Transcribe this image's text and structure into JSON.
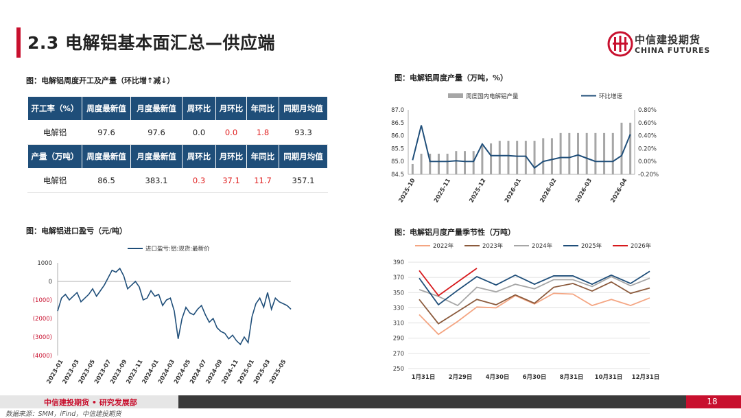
{
  "page": {
    "title": "2.3 电解铝基本面汇总—供应端",
    "logo_cn": "中信建投期货",
    "logo_en": "CHINA FUTURES",
    "footer_org": "中信建投期货 • 研究发展部",
    "page_number": "18",
    "source": "数据来源：SMM，iFind，中信建投期货",
    "accent_color": "#c8102e",
    "header_color": "#1f4e79"
  },
  "table_section": {
    "caption": "图：电解铝周度开工及产量（环比增↑减↓）",
    "rows": [
      {
        "type": "header",
        "cells": [
          "开工率（%）",
          "周度最新值",
          "月度最新值",
          "周环比",
          "月环比",
          "年同比",
          "同期月均值"
        ]
      },
      {
        "type": "data",
        "cells": [
          "电解铝",
          "97.6",
          "97.6",
          "0.0",
          "0.0",
          "1.8",
          "93.3"
        ],
        "red": [
          4,
          5
        ]
      },
      {
        "type": "header",
        "cells": [
          "产量（万吨）",
          "周度最新值",
          "月度最新值",
          "周环比",
          "月环比",
          "年同比",
          "同期月均值"
        ]
      },
      {
        "type": "data",
        "cells": [
          "电解铝",
          "86.5",
          "383.1",
          "0.3",
          "37.1",
          "11.7",
          "357.1"
        ],
        "red": [
          3,
          4,
          5
        ]
      }
    ]
  },
  "chart_data": [
    {
      "id": "weekly",
      "type": "bar+line",
      "caption": "图：电解铝周度产量（万吨，%）",
      "legend": [
        "周度国内电解铝产量",
        "环比增速"
      ],
      "x_tick_labels": [
        "2025-10",
        "2025-11",
        "2025-12",
        "2026-01",
        "2026-02",
        "2026-03",
        "2026-04"
      ],
      "y_left": {
        "min": 84.5,
        "max": 87.0,
        "ticks": [
          "84.5",
          "85.0",
          "85.5",
          "86.0",
          "86.5",
          "87.0"
        ]
      },
      "y_right": {
        "min": -0.2,
        "max": 0.8,
        "ticks": [
          "-0.20%",
          "0.00%",
          "0.20%",
          "0.40%",
          "0.60%",
          "0.80%"
        ]
      },
      "series": [
        {
          "name": "周度国内电解铝产量",
          "type": "bar",
          "color": "#a6a6a6",
          "values": [
            84.9,
            85.3,
            85.3,
            85.3,
            85.3,
            85.4,
            85.4,
            85.4,
            85.6,
            85.7,
            85.8,
            85.8,
            85.8,
            85.8,
            85.8,
            85.9,
            85.9,
            86.1,
            86.1,
            86.1,
            86.1,
            86.1,
            86.1,
            86.1,
            86.5,
            86.5
          ]
        },
        {
          "name": "环比增速",
          "type": "line",
          "color": "#1f4e79",
          "values": [
            0.02,
            0.56,
            0.0,
            0.0,
            0.0,
            0.01,
            0.0,
            0.0,
            0.27,
            0.09,
            0.09,
            0.09,
            0.08,
            0.08,
            -0.1,
            0.0,
            0.03,
            0.06,
            0.06,
            0.1,
            0.05,
            0.0,
            0.0,
            0.0,
            0.09,
            0.42
          ]
        }
      ]
    },
    {
      "id": "import",
      "type": "line",
      "caption": "图：电解铝进口盈亏（元/吨）",
      "legend": [
        "进口盈亏:铝:现货:最新价"
      ],
      "x_tick_labels": [
        "2023-01",
        "2023-03",
        "2023-05",
        "2023-07",
        "2023-09",
        "2023-11",
        "2024-01",
        "2024-03",
        "2024-05",
        "2024-07",
        "2024-09",
        "2024-11",
        "2025-01",
        "2025-03",
        "2025-05"
      ],
      "y": {
        "min": -4000,
        "max": 1000,
        "ticks": [
          "1000",
          "0",
          "(1000)",
          "(2000)",
          "(3000)",
          "(4000)"
        ]
      },
      "series": [
        {
          "name": "进口盈亏:铝:现货:最新价",
          "color": "#1f4e79",
          "values": [
            -1600,
            -900,
            -700,
            -1000,
            -800,
            -600,
            -1100,
            -900,
            -700,
            -400,
            -800,
            -500,
            -200,
            200,
            600,
            500,
            700,
            300,
            -400,
            -200,
            0,
            -300,
            -1000,
            -900,
            -500,
            -800,
            -700,
            -1300,
            -1000,
            -900,
            -1600,
            -3100,
            -2000,
            -1400,
            -1700,
            -1800,
            -1500,
            -1300,
            -1800,
            -2200,
            -2000,
            -2500,
            -2700,
            -2800,
            -3100,
            -2900,
            -3200,
            -3400,
            -3000,
            -3300,
            -1900,
            -1200,
            -900,
            -1400,
            -600,
            -1500,
            -900,
            -1100,
            -1200,
            -1300,
            -1500
          ]
        }
      ]
    },
    {
      "id": "seasonal",
      "type": "line",
      "caption": "图：电解铝月度产量季节性（万吨）",
      "x_tick_labels": [
        "1月31日",
        "2月29日",
        "4月30日",
        "6月30日",
        "8月31日",
        "10月31日",
        "12月31日"
      ],
      "y": {
        "min": 250,
        "max": 390,
        "ticks": [
          "250",
          "270",
          "290",
          "310",
          "330",
          "350",
          "370",
          "390"
        ]
      },
      "series": [
        {
          "name": "2022年",
          "color": "#f4a582",
          "values": [
            321,
            295,
            312,
            331,
            330,
            346,
            335,
            349,
            348,
            333,
            341,
            333,
            343
          ]
        },
        {
          "name": "2023年",
          "color": "#8b5a3c",
          "values": [
            341,
            309,
            325,
            341,
            334,
            347,
            336,
            357,
            362,
            352,
            364,
            349,
            356
          ]
        },
        {
          "name": "2024年",
          "color": "#a6a6a6",
          "values": [
            354,
            345,
            333,
            357,
            351,
            361,
            355,
            367,
            367,
            358,
            371,
            359,
            369
          ]
        },
        {
          "name": "2025年",
          "color": "#1f4e79",
          "values": [
            369,
            334,
            353,
            371,
            360,
            373,
            361,
            372,
            372,
            361,
            373,
            362,
            378
          ]
        },
        {
          "name": "2026年",
          "color": "#d7191c",
          "values": [
            379,
            346,
            364,
            382
          ]
        }
      ]
    }
  ]
}
